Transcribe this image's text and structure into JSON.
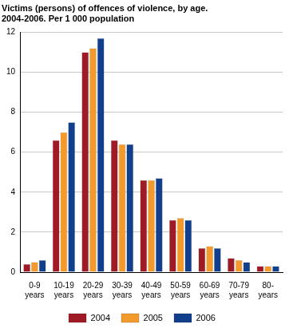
{
  "chart_data": {
    "type": "bar",
    "title": [
      "Victims (persons) of offences of violence, by age.",
      "2004-2006. Per 1 000 population"
    ],
    "categories": [
      "0-9 years",
      "10-19 years",
      "20-29 years",
      "30-39 years",
      "40-49 years",
      "50-59 years",
      "60-69 years",
      "70-79 years",
      "80- years"
    ],
    "series": [
      {
        "name": "2004",
        "color": "#9e1b25",
        "values": [
          0.4,
          6.6,
          11.0,
          6.6,
          4.6,
          2.6,
          1.2,
          0.7,
          0.3
        ]
      },
      {
        "name": "2005",
        "color": "#f39a2c",
        "values": [
          0.5,
          7.0,
          11.2,
          6.4,
          4.6,
          2.7,
          1.3,
          0.6,
          0.3
        ]
      },
      {
        "name": "2006",
        "color": "#123f8c",
        "values": [
          0.6,
          7.5,
          11.7,
          6.4,
          4.7,
          2.6,
          1.2,
          0.5,
          0.3
        ]
      }
    ],
    "ylim": [
      0,
      12
    ],
    "yticks": [
      0,
      2,
      4,
      6,
      8,
      10,
      12
    ],
    "grid": true,
    "legend": "bottom"
  }
}
